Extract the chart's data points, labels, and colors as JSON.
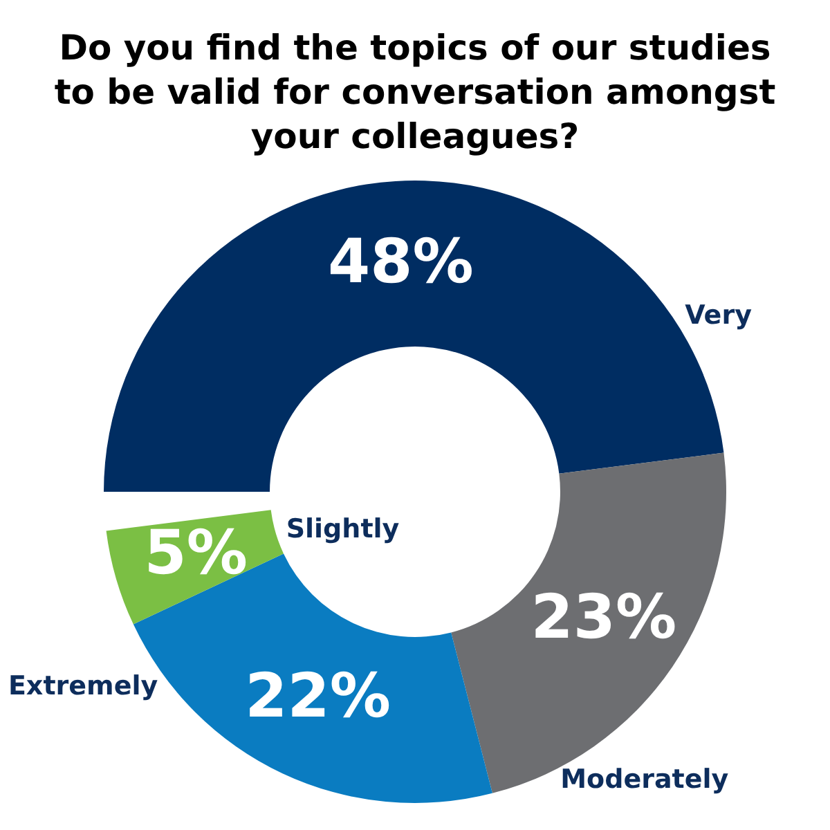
{
  "chart_data": {
    "type": "donut",
    "title": "Do you find the topics of our studies to be valid for conversation amongst your colleagues?",
    "categories": [
      "Very",
      "Moderately",
      "Extremely",
      "Slightly"
    ],
    "values": [
      48,
      23,
      22,
      5
    ],
    "value_labels": [
      "48%",
      "23%",
      "22%",
      "5%"
    ],
    "colors": [
      "#002d62",
      "#6d6e71",
      "#0a7cc1",
      "#7bbf44"
    ]
  }
}
